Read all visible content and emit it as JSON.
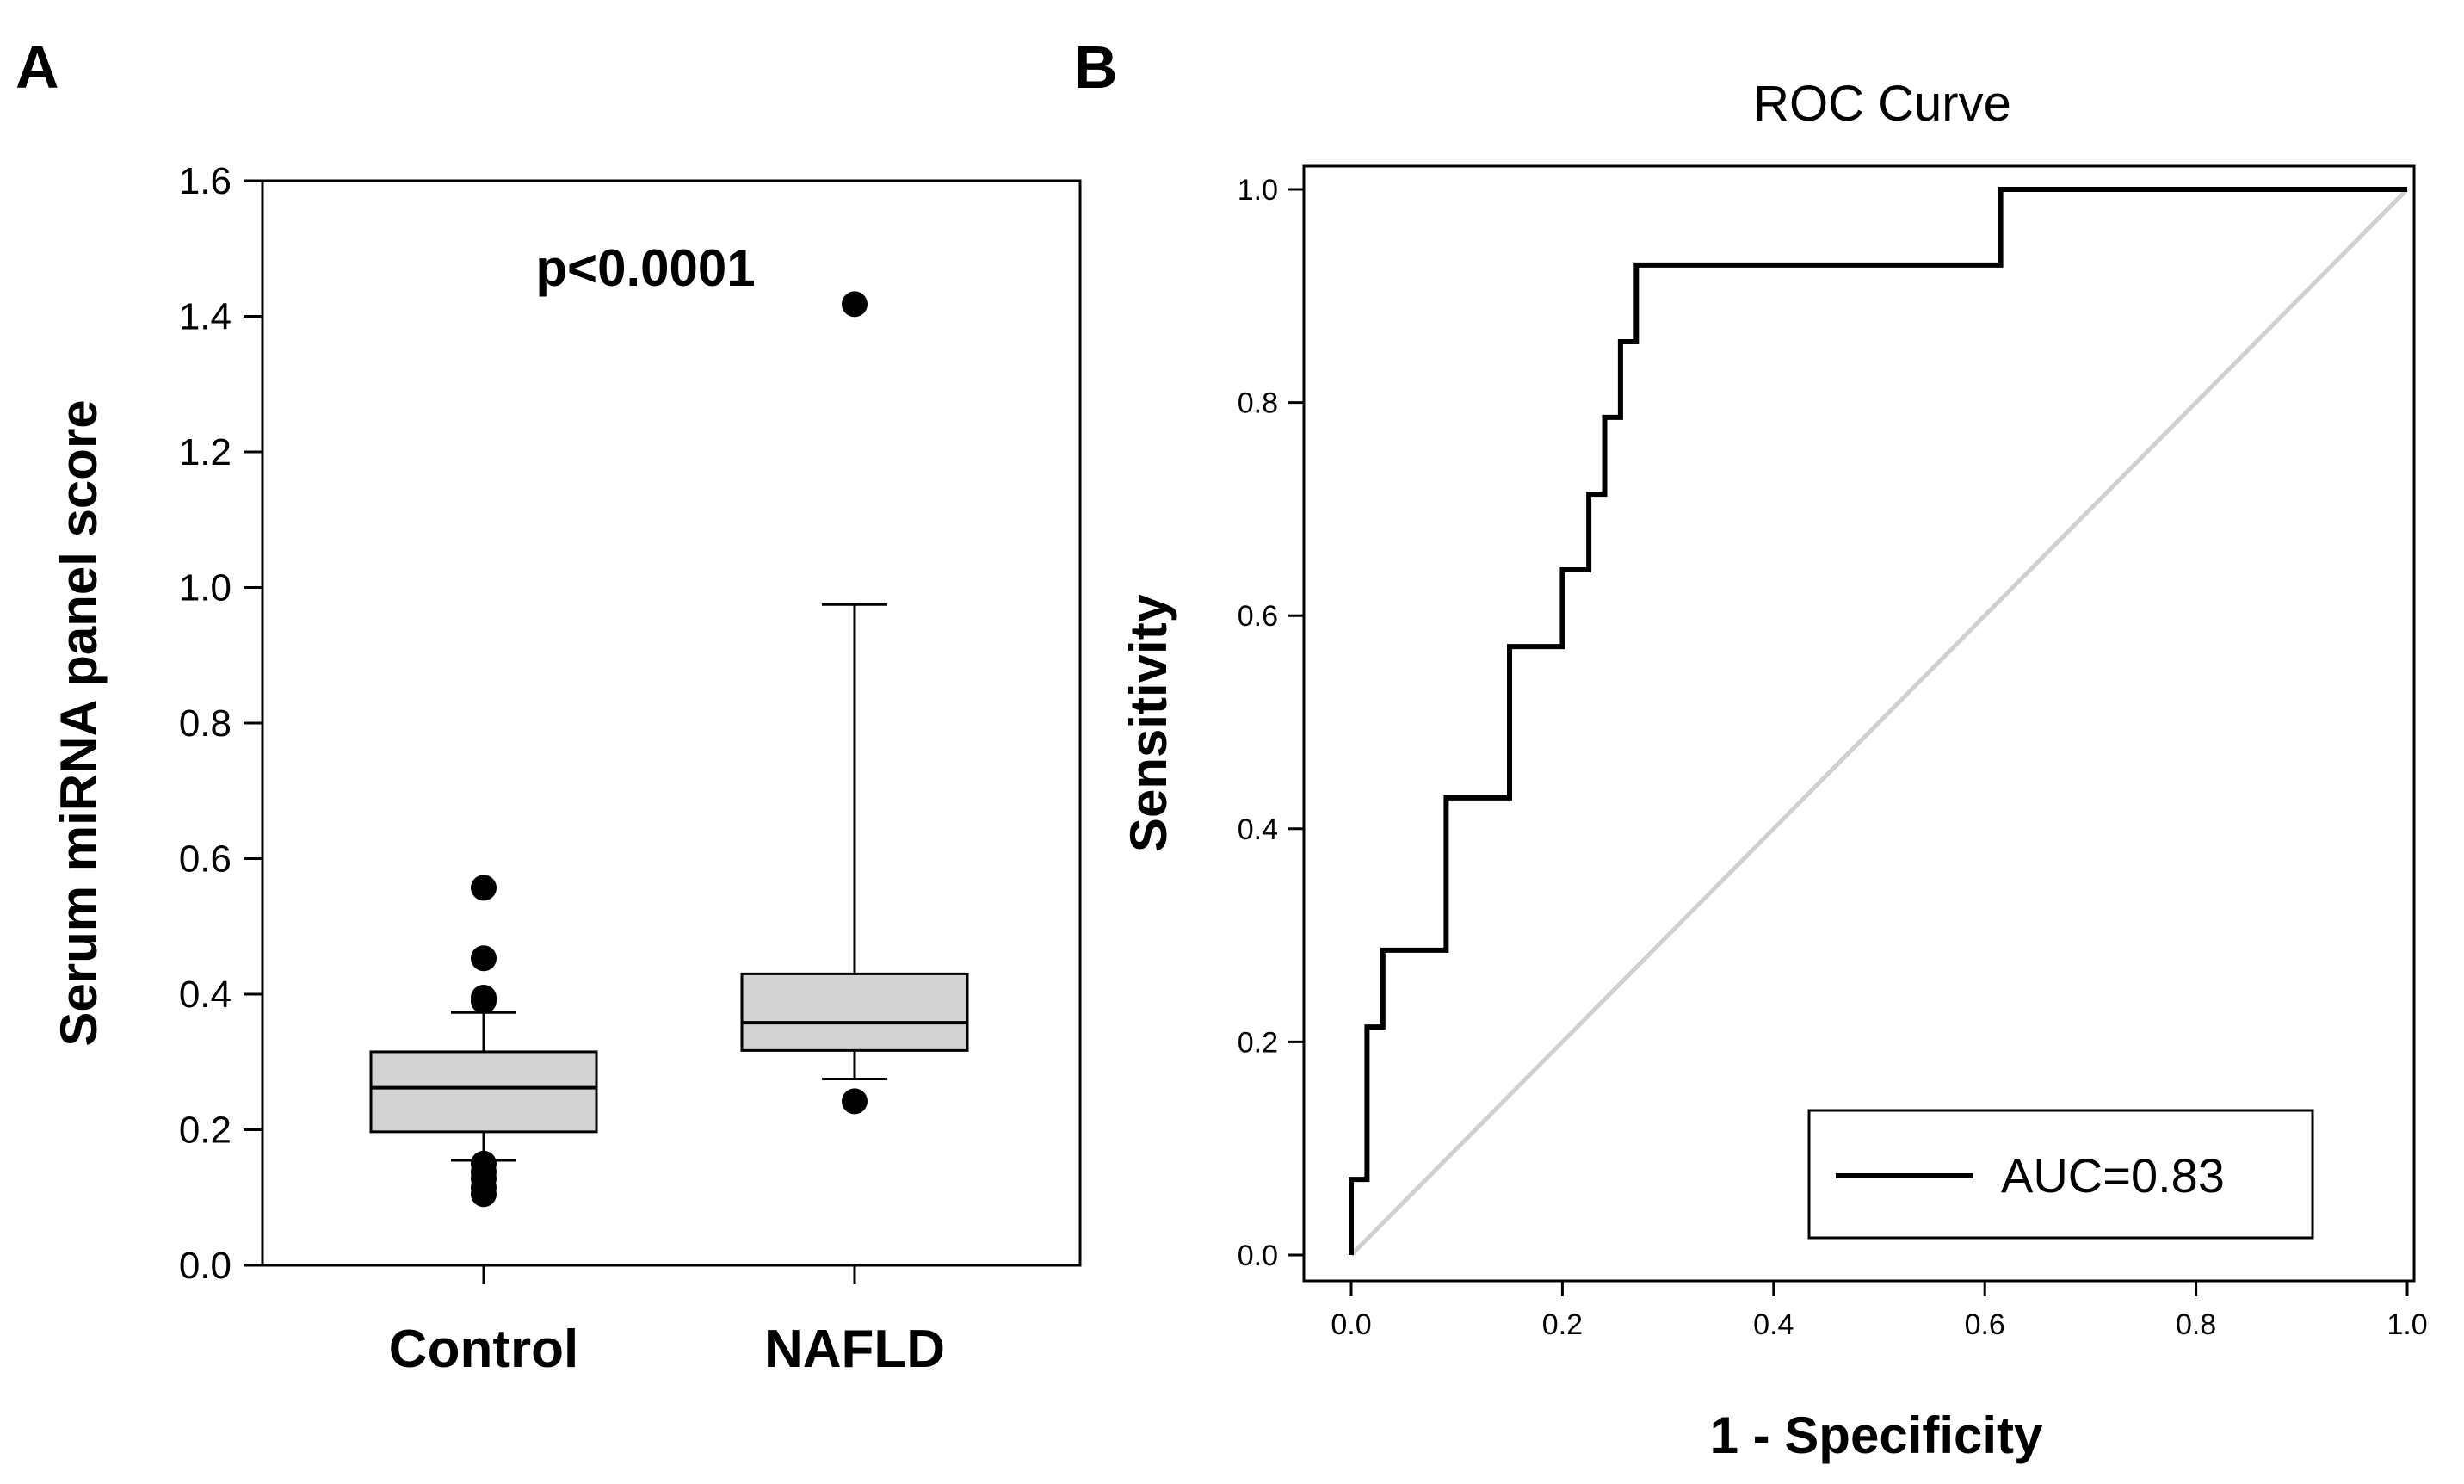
{
  "figure": {
    "panel_a_letter": "A",
    "panel_b_letter": "B"
  },
  "colors": {
    "box_fill": "#d3d3d3",
    "reference_line": "#d0d0d0",
    "roc_line": "#000000"
  },
  "chart_data": [
    {
      "type": "box",
      "panel": "A",
      "title": "",
      "xlabel": "",
      "ylabel": "Serum miRNA panel score",
      "ylim": [
        0.0,
        1.6
      ],
      "yticks": [
        0.0,
        0.2,
        0.4,
        0.6,
        0.8,
        1.0,
        1.2,
        1.4,
        1.6
      ],
      "ytick_labels": [
        "0.0",
        "0.2",
        "0.4",
        "0.6",
        "0.8",
        "1.0",
        "1.2",
        "1.4",
        "1.6"
      ],
      "categories": [
        "Control",
        "NAFLD"
      ],
      "boxes": [
        {
          "name": "Control",
          "whisker_low": 0.155,
          "q1": 0.197,
          "median": 0.262,
          "q3": 0.315,
          "whisker_high": 0.373,
          "outliers": [
            0.557,
            0.453,
            0.395,
            0.39,
            0.15,
            0.138,
            0.128,
            0.115,
            0.105
          ]
        },
        {
          "name": "NAFLD",
          "whisker_low": 0.275,
          "q1": 0.317,
          "median": 0.358,
          "q3": 0.43,
          "whisker_high": 0.975,
          "outliers": [
            1.418,
            0.242
          ]
        }
      ],
      "annotations": [
        {
          "text": "p<0.0001"
        }
      ]
    },
    {
      "type": "line",
      "panel": "B",
      "title": "ROC Curve",
      "xlabel": "1 - Specificity",
      "ylabel": "Sensitivity",
      "xlim": [
        0.0,
        1.0
      ],
      "ylim": [
        0.0,
        1.0
      ],
      "xticks": [
        0.0,
        0.2,
        0.4,
        0.6,
        0.8,
        1.0
      ],
      "xtick_labels": [
        "0.0",
        "0.2",
        "0.4",
        "0.6",
        "0.8",
        "1.0"
      ],
      "yticks": [
        0.0,
        0.2,
        0.4,
        0.6,
        0.8,
        1.0
      ],
      "ytick_labels": [
        "0.0",
        "0.2",
        "0.4",
        "0.6",
        "0.8",
        "1.0"
      ],
      "series": [
        {
          "name": "AUC=0.83",
          "x": [
            0.0,
            0.0,
            0.0,
            0.015,
            0.015,
            0.03,
            0.03,
            0.09,
            0.09,
            0.15,
            0.15,
            0.2,
            0.2,
            0.225,
            0.225,
            0.24,
            0.24,
            0.255,
            0.255,
            0.27,
            0.27,
            0.615,
            0.615,
            1.0
          ],
          "y": [
            0.0,
            0.0,
            0.071,
            0.071,
            0.214,
            0.214,
            0.286,
            0.286,
            0.429,
            0.429,
            0.571,
            0.571,
            0.643,
            0.643,
            0.714,
            0.714,
            0.786,
            0.786,
            0.857,
            0.857,
            0.929,
            0.929,
            1.0,
            1.0
          ]
        }
      ],
      "reference_line": {
        "x": [
          0.0,
          1.0
        ],
        "y": [
          0.0,
          1.0
        ]
      },
      "legend": {
        "placement": "bottom-right",
        "entries": [
          "AUC=0.83"
        ]
      }
    }
  ]
}
